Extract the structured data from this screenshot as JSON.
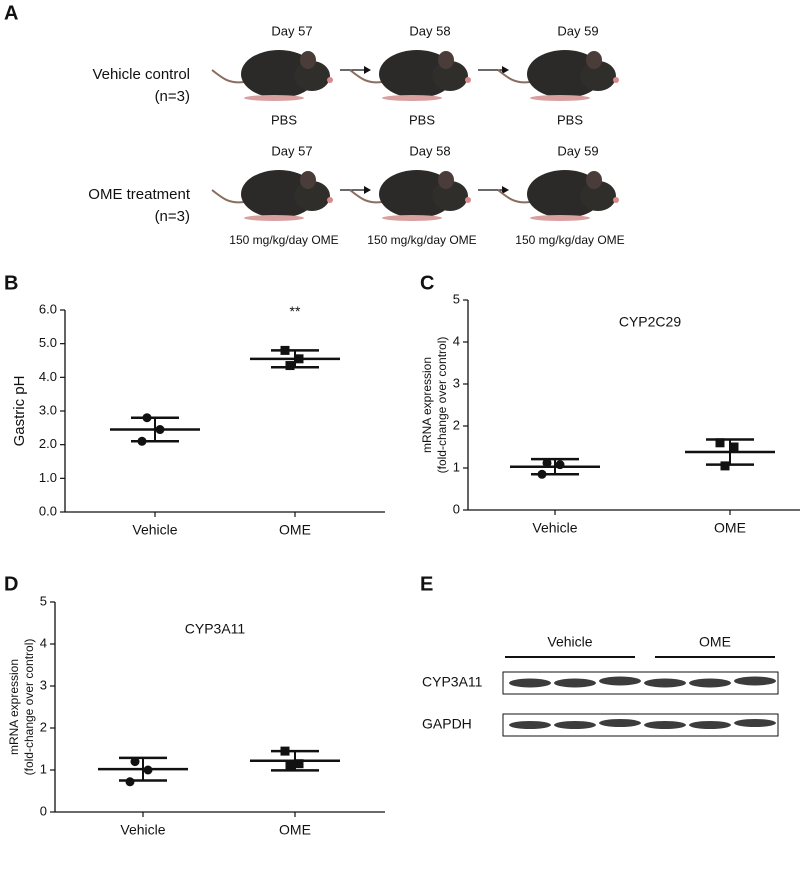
{
  "schematic": {
    "panel": "A",
    "rows": [
      {
        "label": "Vehicle control",
        "n": "(n=3)",
        "days": [
          "Day 57",
          "Day 58",
          "Day 59"
        ],
        "treatments": [
          "PBS",
          "PBS",
          "PBS"
        ]
      },
      {
        "label": "OME treatment",
        "n": "(n=3)",
        "days": [
          "Day 57",
          "Day 58",
          "Day 59"
        ],
        "treatments": [
          "150 mg/kg/day OME",
          "150 mg/kg/day OME",
          "150 mg/kg/day OME"
        ]
      }
    ]
  },
  "chart_data": [
    {
      "type": "dotplot",
      "panel": "B",
      "ylabel": [
        "Gastric pH"
      ],
      "annotation": "**",
      "categories": [
        "Vehicle",
        "OME"
      ],
      "groups": [
        {
          "points": [
            2.8,
            2.45,
            2.1
          ],
          "mean": 2.45,
          "sd": 0.35,
          "marker": "circle"
        },
        {
          "points": [
            4.8,
            4.55,
            4.35
          ],
          "mean": 4.55,
          "sd": 0.25,
          "marker": "square"
        }
      ],
      "ylim": [
        0,
        6
      ],
      "yticks": [
        {
          "value": 0,
          "label": "0.0"
        },
        {
          "value": 1,
          "label": "1.0"
        },
        {
          "value": 2,
          "label": "2.0"
        },
        {
          "value": 3,
          "label": "3.0"
        },
        {
          "value": 4,
          "label": "4.0"
        },
        {
          "value": 5,
          "label": "5.0"
        },
        {
          "value": 6,
          "label": "6.0"
        }
      ]
    },
    {
      "type": "dotplot",
      "panel": "C",
      "title": "CYP2C29",
      "ylabel": [
        "mRNA expression",
        "(fold-change over control)"
      ],
      "categories": [
        "Vehicle",
        "OME"
      ],
      "groups": [
        {
          "points": [
            1.12,
            1.08,
            0.85
          ],
          "mean": 1.03,
          "sd": 0.18,
          "marker": "circle"
        },
        {
          "points": [
            1.6,
            1.5,
            1.05
          ],
          "mean": 1.38,
          "sd": 0.3,
          "marker": "square"
        }
      ],
      "ylim": [
        0,
        5
      ],
      "yticks": [
        0,
        1,
        2,
        3,
        4,
        5
      ]
    },
    {
      "type": "dotplot",
      "panel": "D",
      "title": "CYP3A11",
      "ylabel": [
        "mRNA expression",
        "(fold-change over control)"
      ],
      "categories": [
        "Vehicle",
        "OME"
      ],
      "groups": [
        {
          "points": [
            1.2,
            1.0,
            0.72
          ],
          "mean": 1.02,
          "sd": 0.27,
          "marker": "circle"
        },
        {
          "points": [
            1.45,
            1.15,
            1.1
          ],
          "mean": 1.22,
          "sd": 0.23,
          "marker": "square"
        }
      ],
      "ylim": [
        0,
        5
      ],
      "yticks": [
        0,
        1,
        2,
        3,
        4,
        5
      ]
    }
  ],
  "blot": {
    "panel": "E",
    "groups": [
      "Vehicle",
      "OME"
    ],
    "rows": [
      "CYP3A11",
      "GAPDH"
    ]
  }
}
